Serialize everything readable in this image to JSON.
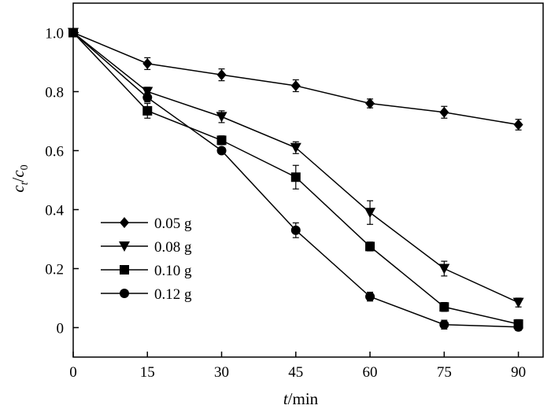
{
  "chart_data": {
    "type": "line",
    "x": [
      0,
      15,
      30,
      45,
      60,
      75,
      90
    ],
    "xlim": [
      0,
      95
    ],
    "ylim": [
      -0.1,
      1.1
    ],
    "xticks": [
      "0",
      "15",
      "30",
      "45",
      "60",
      "75",
      "90"
    ],
    "yticks": [
      "0",
      "0.2",
      "0.4",
      "0.6",
      "0.8",
      "1.0"
    ],
    "xlabel": {
      "var": "t",
      "unit": "/min"
    },
    "ylabel": {
      "c1": "c",
      "s1": "t",
      "slash": "/",
      "c2": "c",
      "s2": "0"
    },
    "legend_position": "bottom-left",
    "grid": false,
    "series": [
      {
        "name": "0.05 g",
        "marker": "diamond",
        "color": "#000000",
        "values": [
          1.0,
          0.895,
          0.857,
          0.82,
          0.76,
          0.73,
          0.688
        ],
        "errors": [
          0.01,
          0.02,
          0.02,
          0.02,
          0.015,
          0.02,
          0.018
        ]
      },
      {
        "name": "0.08 g",
        "marker": "triangle-down",
        "color": "#000000",
        "values": [
          1.0,
          0.8,
          0.715,
          0.61,
          0.39,
          0.2,
          0.085
        ],
        "errors": [
          0.01,
          0.015,
          0.02,
          0.02,
          0.04,
          0.025,
          0.015
        ]
      },
      {
        "name": "0.10 g",
        "marker": "square",
        "color": "#000000",
        "values": [
          1.0,
          0.735,
          0.635,
          0.51,
          0.275,
          0.07,
          0.012
        ],
        "errors": [
          0.01,
          0.025,
          0.015,
          0.04,
          0.015,
          0.015,
          0.015
        ]
      },
      {
        "name": "0.12 g",
        "marker": "circle",
        "color": "#000000",
        "values": [
          1.0,
          0.78,
          0.6,
          0.33,
          0.105,
          0.01,
          0.002
        ],
        "errors": [
          0.01,
          0.015,
          0.01,
          0.025,
          0.015,
          0.015,
          0.012
        ]
      }
    ]
  }
}
